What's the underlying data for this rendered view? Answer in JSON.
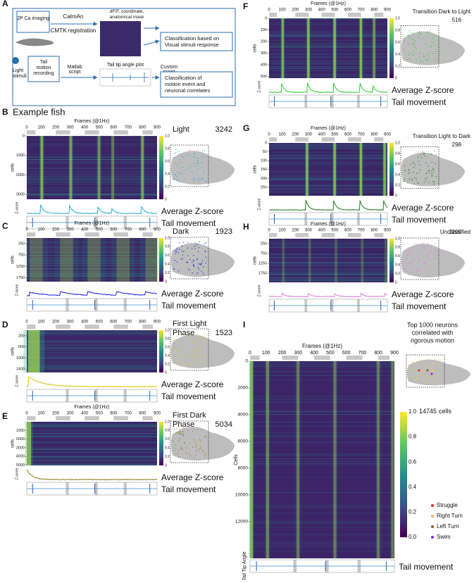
{
  "panel_a": {
    "letter": "A",
    "imaging": "2P Ca imaging",
    "caiman": "CaImAn",
    "cmtk": "CMTK registration",
    "dff": [
      "dF/F, coordinate,",
      "anatomical mask"
    ],
    "visual_class": [
      "Classification based on",
      "Visual stimuli response"
    ],
    "light_stimuli": [
      "Light",
      "stimuli"
    ],
    "tail_recording": [
      "Tail",
      "motion",
      "recording"
    ],
    "matlab": [
      "Matlab",
      "script"
    ],
    "tail_plot": "Tail tip angle plot",
    "custom": [
      "Custom",
      "script"
    ],
    "motion_class": [
      "Classification of",
      "motion event and",
      "neuronal correlates"
    ]
  },
  "panels": [
    {
      "letter": "B",
      "heading": "Example fish",
      "xlabel": "Frames (@1Hz)",
      "xticks": [
        0,
        100,
        200,
        300,
        400,
        500,
        600,
        700,
        800,
        900
      ],
      "ylabel": "cells",
      "yticks": [
        0,
        1000,
        2000,
        3000
      ],
      "class_lines": [
        "Light"
      ],
      "count": 3242,
      "color": "#29a9e0",
      "zlabel": "Z-score",
      "trace_label": "Average Z-score",
      "tail_label": "Tail movement",
      "colorbar_ticks": [
        "1.0",
        "0.8",
        "0.6",
        "0.4",
        "0.2",
        "0"
      ]
    },
    {
      "letter": "C",
      "xlabel": "Frames (@1Hz)",
      "xticks": [
        0,
        100,
        200,
        300,
        400,
        500,
        600,
        700,
        800,
        900
      ],
      "ylabel": "cells",
      "yticks": [
        250,
        750,
        1250,
        1750
      ],
      "class_lines": [
        "Dark"
      ],
      "count": 1923,
      "color": "#1a1ad8",
      "zlabel": "Z-score",
      "trace_label": "Average Z-score",
      "tail_label": "Tail movement",
      "colorbar_ticks": [
        "1.0",
        "0.8",
        "0.6",
        "0.4",
        "0.2",
        "0"
      ]
    },
    {
      "letter": "D",
      "xticks": [
        0,
        100,
        200,
        300,
        400,
        500,
        600,
        700,
        800,
        900
      ],
      "ylabel": "cells",
      "yticks": [
        200,
        600,
        1000,
        1400
      ],
      "class_lines": [
        "First Light",
        "Phase"
      ],
      "count": 1523,
      "color": "#d6c400",
      "zlabel": "Z-score",
      "trace_label": "Average Z-score",
      "tail_label": "Tail movement",
      "colorbar_ticks": [
        "1.0",
        "0.8",
        "0.6",
        "0.4",
        "0.2",
        "0"
      ]
    },
    {
      "letter": "E",
      "xlabel": "Frames (@1Hz)",
      "xticks": [
        0,
        100,
        200,
        300,
        400,
        500,
        600,
        700,
        800,
        900
      ],
      "ylabel": "cells",
      "yticks": [
        1000,
        2000,
        3000,
        4000,
        5000
      ],
      "class_lines": [
        "First Dark",
        "Phase"
      ],
      "count": 5034,
      "color": "#8c7a1c",
      "zlabel": "Z-score",
      "trace_label": "Average Z-score",
      "tail_label": "Tail movement",
      "colorbar_ticks": [
        "1.0",
        "0.8",
        "0.6",
        "0.4",
        "0.2",
        "0"
      ]
    },
    {
      "letter": "F",
      "xlabel": "Frames (@1Hz)",
      "xticks": [
        0,
        100,
        200,
        300,
        400,
        500,
        600,
        700,
        800,
        900
      ],
      "ylabel": "cells",
      "yticks": [
        0,
        100,
        200,
        300,
        400,
        500
      ],
      "class_lines": [
        "Transition Dark to Light"
      ],
      "count": 516,
      "color": "#2ecc2e",
      "zlabel": "Z-score",
      "trace_label": "Average Z-score",
      "tail_label": "Tail movement",
      "colorbar_ticks": [
        "1.0",
        "0.8",
        "0.6",
        "0.4",
        "0.2",
        "0"
      ]
    },
    {
      "letter": "G",
      "xlabel": "Frames (@1Hz)",
      "xticks": [
        0,
        100,
        200,
        300,
        400,
        500,
        600,
        700,
        800,
        900
      ],
      "ylabel": "cells",
      "yticks": [
        0,
        50,
        100,
        150,
        200,
        250
      ],
      "class_lines": [
        "Transition Light to Dark"
      ],
      "count": 298,
      "color": "#1f7a1f",
      "zlabel": "Z-score",
      "trace_label": "Average Z-score",
      "tail_label": "Tail movement",
      "colorbar_ticks": [
        "1.0",
        "0.8",
        "0.6",
        "0.4",
        "0.2",
        "0"
      ]
    },
    {
      "letter": "H",
      "xlabel": "Frames (@1Hz)",
      "xticks": [
        0,
        100,
        200,
        300,
        400,
        500,
        600,
        700,
        800,
        900
      ],
      "ylabel": "cells",
      "yticks": [
        250,
        750,
        1250,
        1750
      ],
      "class_lines": [
        "Unclassified"
      ],
      "count": 2209,
      "color": "#e07ae0",
      "zlabel": "Z-score",
      "trace_label": "Average Z-score",
      "tail_label": "Tail movement",
      "colorbar_ticks": [
        "1.0",
        "0.8",
        "0.6",
        "0.4",
        "0.2",
        "0"
      ]
    },
    {
      "letter": "I",
      "xlabel": "Frames (@1Hz)",
      "xticks": [
        0,
        100,
        200,
        300,
        400,
        500,
        600,
        700,
        800,
        900
      ],
      "ylabel": "Cells",
      "yticks": [
        0,
        2000,
        4000,
        6000,
        8000,
        10000,
        12000
      ],
      "count": 14745,
      "count_unit": "cells",
      "title_lines": [
        "Top 1000 neurons",
        "correlated with",
        "rigorous motion"
      ],
      "tail_ylabel": "Tail Tip Angle",
      "tail_label": "Tail movement",
      "colorbar_ticks": [
        "1.0",
        "0.8",
        "0.6",
        "0.4",
        "0.2",
        "0.0"
      ],
      "legend": [
        {
          "name": "Struggle",
          "color": "#e0301e"
        },
        {
          "name": "Right Turn",
          "color": "#f2b36b"
        },
        {
          "name": "Left Turn",
          "color": "#9a5a1e"
        },
        {
          "name": "Swim",
          "color": "#8a2be2"
        }
      ]
    }
  ]
}
